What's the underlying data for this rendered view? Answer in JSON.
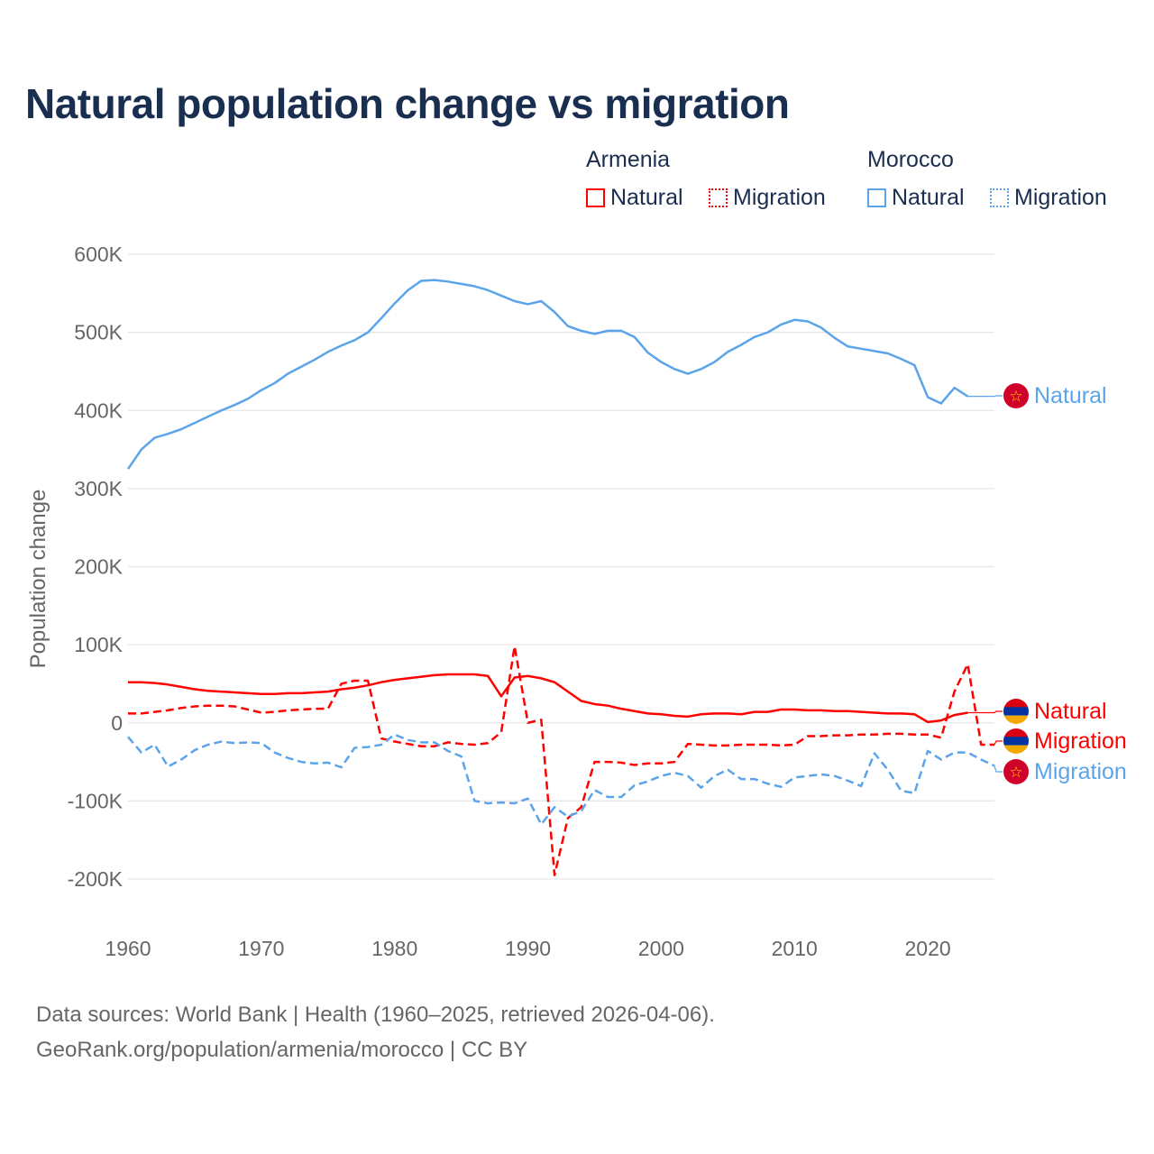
{
  "title": "Natural population change vs migration",
  "legend": {
    "groups": [
      {
        "name": "Armenia",
        "items": [
          {
            "label": "Natural",
            "style": "solid",
            "color": "#ff0000"
          },
          {
            "label": "Migration",
            "style": "dotted",
            "color": "#ff0000"
          }
        ]
      },
      {
        "name": "Morocco",
        "items": [
          {
            "label": "Natural",
            "style": "solid",
            "color": "#5ba4ea"
          },
          {
            "label": "Migration",
            "style": "dotted",
            "color": "#5ba4ea"
          }
        ]
      }
    ]
  },
  "footer": {
    "line1": "Data sources: World Bank | Health (1960–2025, retrieved 2026-04-06).",
    "line2": "GeoRank.org/population/armenia/morocco | CC BY"
  },
  "chart_data": {
    "type": "line",
    "title": "Natural population change vs migration",
    "xlabel": "",
    "ylabel": "Population change",
    "xlim": [
      1960,
      2025
    ],
    "ylim": [
      -200000,
      600000
    ],
    "xticks": [
      1960,
      1970,
      1980,
      1990,
      2000,
      2010,
      2020
    ],
    "xtick_labels": [
      "1960",
      "1970",
      "1980",
      "1990",
      "2000",
      "2010",
      "2020"
    ],
    "yticks": [
      -200000,
      -100000,
      0,
      100000,
      200000,
      300000,
      400000,
      500000,
      600000
    ],
    "ytick_labels": [
      "-200K",
      "-100K",
      "0",
      "100K",
      "200K",
      "300K",
      "400K",
      "500K",
      "600K"
    ],
    "grid": true,
    "legend_position": "top-right",
    "x_start": 1960,
    "series": [
      {
        "name": "Morocco Natural",
        "country": "Morocco",
        "end_label": "Natural",
        "color": "#5ba4ea",
        "dashed": false,
        "flag": "morocco",
        "values": [
          325,
          350,
          365,
          370,
          376,
          384,
          392,
          400,
          407,
          415,
          426,
          435,
          447,
          456,
          465,
          475,
          483,
          490,
          500,
          518,
          537,
          554,
          566,
          567,
          565,
          562,
          559,
          554,
          547,
          540,
          536,
          540,
          526,
          508,
          502,
          498,
          502,
          502,
          494,
          474,
          462,
          453,
          447,
          453,
          462,
          475,
          484,
          494,
          500,
          510,
          516,
          514,
          506,
          493,
          482,
          479,
          476,
          473,
          466,
          458,
          417,
          409,
          429,
          418
        ]
      },
      {
        "name": "Armenia Natural",
        "country": "Armenia",
        "end_label": "Natural",
        "color": "#ff0000",
        "dashed": false,
        "flag": "armenia",
        "values": [
          52,
          52,
          51,
          49,
          46,
          43,
          41,
          40,
          39,
          38,
          37,
          37,
          38,
          38,
          39,
          40,
          43,
          45,
          48,
          52,
          55,
          57,
          59,
          61,
          62,
          62,
          62,
          60,
          34,
          58,
          60,
          57,
          52,
          40,
          28,
          24,
          22,
          18,
          15,
          12,
          11,
          9,
          8,
          11,
          12,
          12,
          11,
          14,
          14,
          17,
          17,
          16,
          16,
          15,
          15,
          14,
          13,
          12,
          12,
          11,
          1,
          3,
          10,
          13
        ]
      },
      {
        "name": "Armenia Migration",
        "country": "Armenia",
        "end_label": "Migration",
        "color": "#ff0000",
        "dashed": true,
        "flag": "armenia",
        "values": [
          12,
          12,
          14,
          16,
          19,
          21,
          22,
          22,
          21,
          17,
          13,
          14,
          16,
          17,
          18,
          18,
          50,
          54,
          54,
          -20,
          -24,
          -27,
          -30,
          -30,
          -25,
          -27,
          -28,
          -26,
          -12,
          98,
          0,
          4,
          -195,
          -122,
          -108,
          -50,
          -50,
          -51,
          -54,
          -52,
          -52,
          -50,
          -27,
          -28,
          -29,
          -29,
          -28,
          -28,
          -28,
          -29,
          -28,
          -17,
          -17,
          -16,
          -16,
          -15,
          -15,
          -14,
          -14,
          -15,
          -15,
          -19,
          40,
          75,
          -28,
          -28
        ]
      },
      {
        "name": "Morocco Migration",
        "country": "Morocco",
        "end_label": "Migration",
        "color": "#5ba4ea",
        "dashed": true,
        "flag": "morocco",
        "values": [
          -18,
          -38,
          -28,
          -56,
          -47,
          -35,
          -28,
          -24,
          -26,
          -25,
          -26,
          -38,
          -45,
          -50,
          -52,
          -51,
          -57,
          -32,
          -31,
          -28,
          -15,
          -22,
          -25,
          -25,
          -36,
          -43,
          -100,
          -103,
          -102,
          -103,
          -97,
          -130,
          -108,
          -120,
          -113,
          -86,
          -95,
          -95,
          -80,
          -75,
          -68,
          -64,
          -68,
          -83,
          -68,
          -60,
          -72,
          -72,
          -78,
          -82,
          -70,
          -68,
          -66,
          -68,
          -74,
          -81,
          -39,
          -60,
          -87,
          -90,
          -36,
          -47,
          -38,
          -38,
          -47,
          -55
        ]
      }
    ],
    "value_unit": "thousands"
  }
}
